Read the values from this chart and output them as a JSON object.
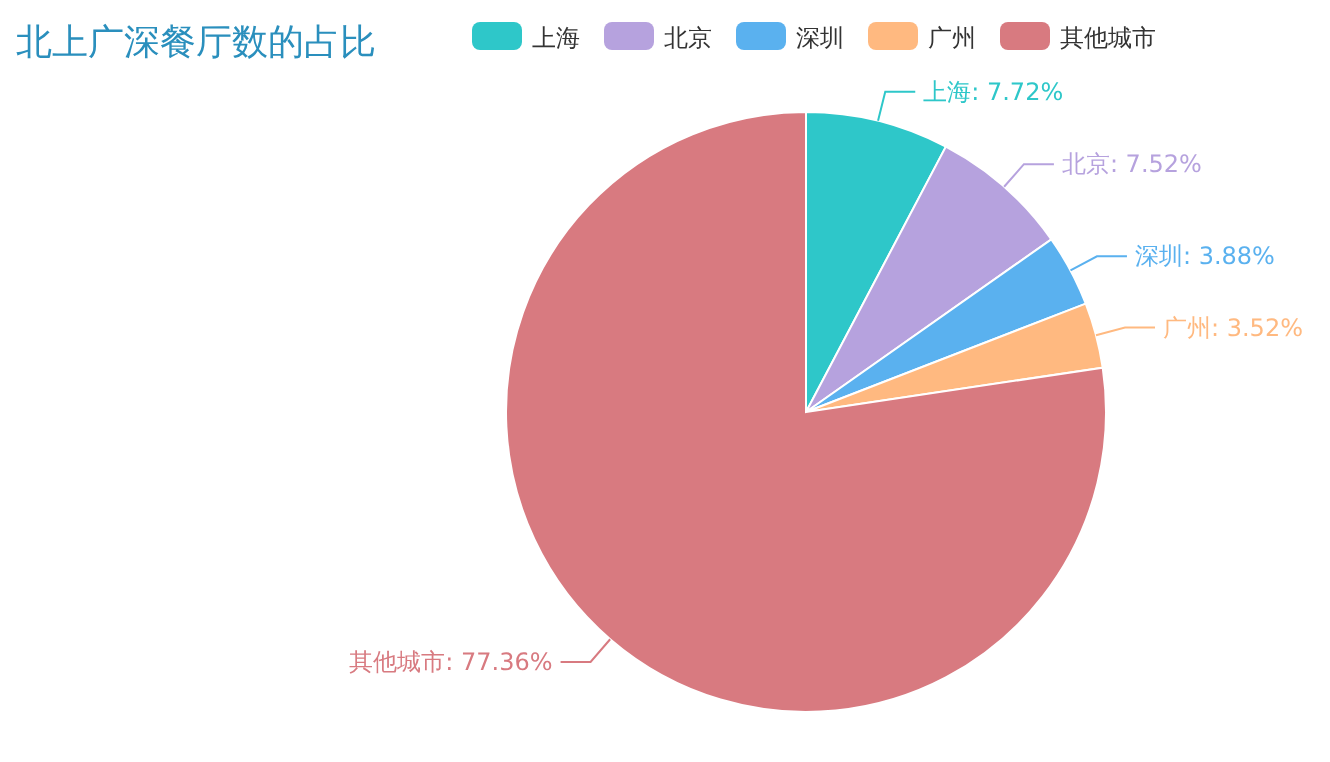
{
  "chart_data": {
    "type": "pie",
    "title": "北上广深餐厅数的占比",
    "categories": [
      "上海",
      "北京",
      "深圳",
      "广州",
      "其他城市"
    ],
    "values": [
      7.72,
      7.52,
      3.88,
      3.52,
      77.36
    ],
    "colors": [
      "#2ec7c9",
      "#b6a2de",
      "#5ab1ef",
      "#ffb980",
      "#d87a80"
    ],
    "value_labels": [
      "上海: 7.72%",
      "北京: 7.52%",
      "深圳: 3.88%",
      "广州: 3.52%",
      "其他城市: 77.36%"
    ],
    "legend": "top"
  }
}
